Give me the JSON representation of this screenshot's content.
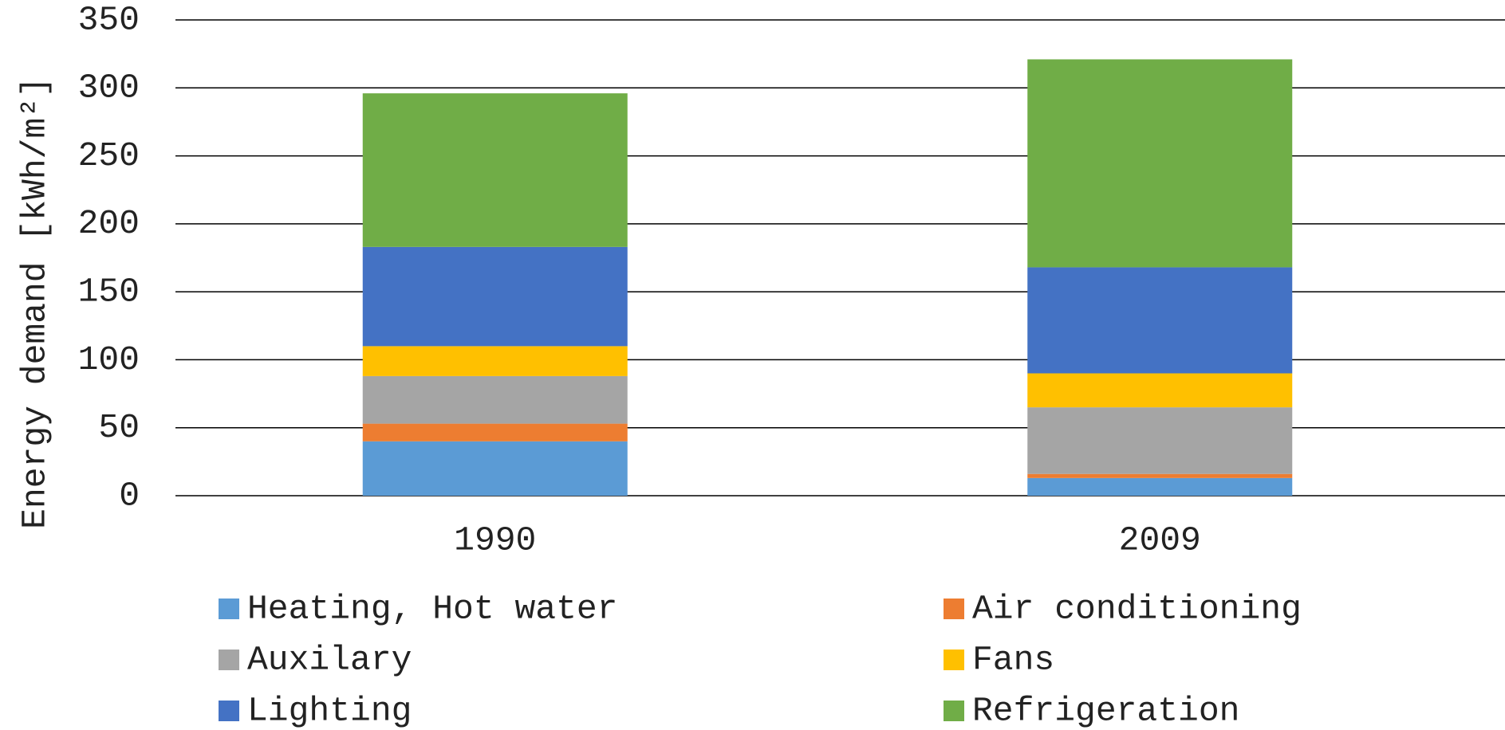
{
  "chart_data": {
    "type": "stacked_bar",
    "y_label": "Energy demand [kWh/m²]",
    "categories": [
      "1990",
      "2009"
    ],
    "series": [
      {
        "name": "Heating, Hot water",
        "color": "#5b9bd5",
        "values": [
          40,
          13
        ]
      },
      {
        "name": "Air conditioning",
        "color": "#ed7d31",
        "values": [
          13,
          3
        ]
      },
      {
        "name": "Auxilary",
        "color": "#a5a5a5",
        "values": [
          35,
          49
        ]
      },
      {
        "name": "Fans",
        "color": "#ffc000",
        "values": [
          22,
          25
        ]
      },
      {
        "name": "Lighting",
        "color": "#4472c4",
        "values": [
          73,
          78
        ]
      },
      {
        "name": "Refrigeration",
        "color": "#70ad47",
        "values": [
          113,
          153
        ]
      }
    ],
    "ylim": [
      0,
      350
    ],
    "yticks": [
      0,
      50,
      100,
      150,
      200,
      250,
      300,
      350
    ],
    "grid": true,
    "legend": "bottom"
  }
}
